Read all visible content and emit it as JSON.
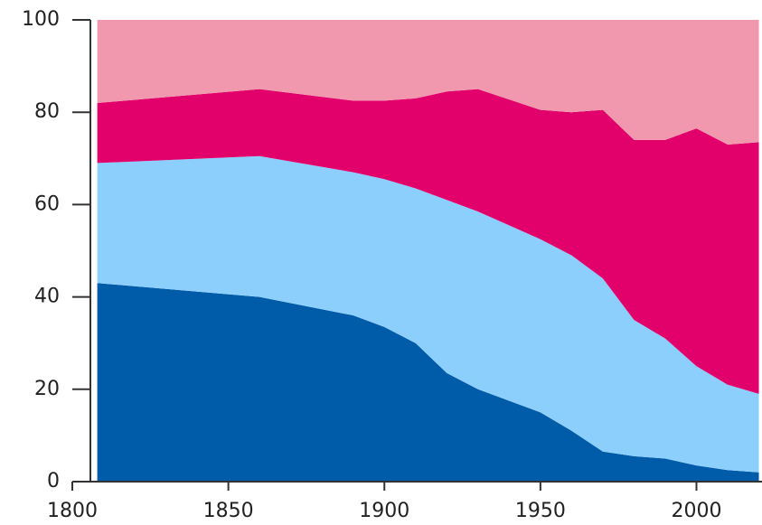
{
  "chart_data": {
    "type": "stacked_area",
    "x": [
      1808,
      1860,
      1890,
      1900,
      1910,
      1920,
      1930,
      1950,
      1960,
      1970,
      1980,
      1990,
      2000,
      2010,
      2020
    ],
    "series": [
      {
        "color": "#005ca8",
        "values": [
          43,
          40,
          36,
          33.5,
          30,
          23.5,
          20,
          15,
          11,
          6.5,
          5.5,
          5,
          3.5,
          2.5,
          2
        ]
      },
      {
        "color": "#8ccffd",
        "values": [
          26,
          30.5,
          31,
          32,
          33.5,
          37.5,
          38.5,
          37.5,
          38,
          37.5,
          29.5,
          26,
          21.5,
          18.5,
          17
        ]
      },
      {
        "color": "#e2006a",
        "values": [
          13,
          14.5,
          15.5,
          17,
          19.5,
          23.5,
          26.5,
          28,
          31,
          36.5,
          39,
          43,
          51.5,
          52,
          54.5
        ]
      },
      {
        "color": "#f298ae",
        "values": [
          18,
          15,
          17.5,
          17.5,
          17,
          15.5,
          15,
          19.5,
          20,
          19.5,
          26,
          26,
          23.5,
          27,
          26.5
        ]
      }
    ],
    "xlim": [
      1800,
      2021
    ],
    "xticks": [
      1800,
      1850,
      1900,
      1950,
      2000
    ],
    "ylim": [
      0,
      100
    ],
    "yticks": [
      0,
      20,
      40,
      60,
      80,
      100
    ]
  }
}
